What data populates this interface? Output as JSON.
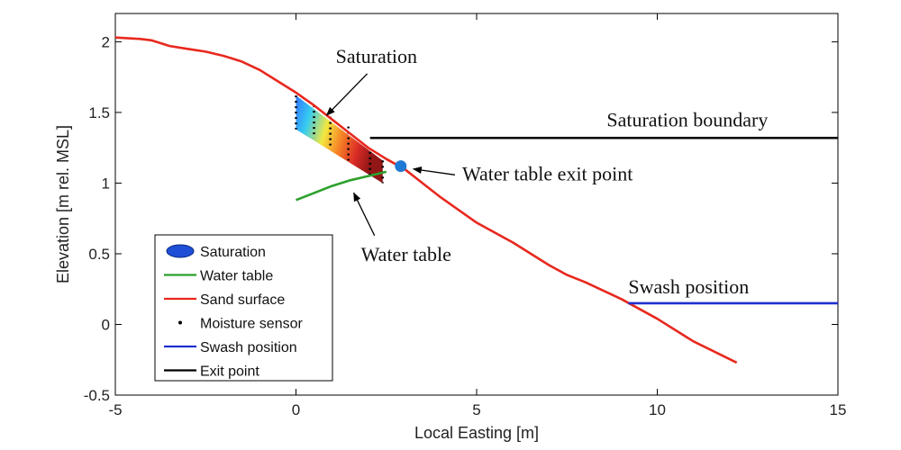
{
  "chart_data": {
    "type": "line",
    "xlabel": "Local Easting [m]",
    "ylabel": "Elevation [m rel. MSL]",
    "xlim": [
      -5,
      15
    ],
    "ylim": [
      -0.5,
      2.2
    ],
    "xticks": [
      "-5",
      "0",
      "5",
      "10",
      "15"
    ],
    "yticks": [
      "-0.5",
      "0",
      "0.5",
      "1",
      "1.5",
      "2"
    ],
    "grid": false,
    "legend_position": "bottom-left",
    "legend": [
      {
        "label": "Saturation",
        "marker": "ellipse",
        "color": "#1f4fd6"
      },
      {
        "label": "Water table",
        "marker": "line",
        "color": "#2ca02c"
      },
      {
        "label": "Sand surface",
        "marker": "line",
        "color": "#e8281e"
      },
      {
        "label": "Moisture sensor",
        "marker": "dot",
        "color": "#000000"
      },
      {
        "label": "Swash position",
        "marker": "line",
        "color": "#1f2fd0"
      },
      {
        "label": "Exit point",
        "marker": "line",
        "color": "#000000"
      }
    ],
    "series": [
      {
        "name": "Sand surface",
        "color": "#e8281e",
        "x": [
          -5,
          -4.3,
          -4,
          -3.5,
          -3,
          -2.5,
          -2,
          -1.5,
          -1,
          -0.5,
          0,
          0.5,
          1,
          1.5,
          2,
          2.5,
          3,
          3.5,
          4,
          5,
          6,
          7,
          7.5,
          8,
          9,
          10,
          11,
          12.2
        ],
        "y": [
          2.03,
          2.02,
          2.01,
          1.97,
          1.95,
          1.93,
          1.9,
          1.86,
          1.8,
          1.72,
          1.64,
          1.55,
          1.45,
          1.35,
          1.25,
          1.17,
          1.1,
          1.0,
          0.9,
          0.72,
          0.58,
          0.42,
          0.35,
          0.3,
          0.18,
          0.04,
          -0.12,
          -0.27
        ]
      },
      {
        "name": "Water table",
        "color": "#2ca02c",
        "x": [
          0,
          0.5,
          1,
          1.5,
          2,
          2.5
        ],
        "y": [
          0.88,
          0.93,
          0.98,
          1.02,
          1.05,
          1.08
        ]
      },
      {
        "name": "Swash position",
        "color": "#1f2fd0",
        "x": [
          9.2,
          15
        ],
        "y": [
          0.15,
          0.15
        ]
      },
      {
        "name": "Exit point",
        "color": "#000000",
        "x": [
          2.05,
          15
        ],
        "y": [
          1.32,
          1.32
        ]
      }
    ],
    "moisture_sensor_columns": [
      {
        "x": 0.0,
        "y_top": 1.62,
        "y_bottom": 1.38
      },
      {
        "x": 0.5,
        "y_top": 1.55,
        "y_bottom": 1.32
      },
      {
        "x": 0.95,
        "y_top": 1.47,
        "y_bottom": 1.25
      },
      {
        "x": 1.45,
        "y_top": 1.4,
        "y_bottom": 1.16
      },
      {
        "x": 2.05,
        "y_top": 1.22,
        "y_bottom": 1.06
      },
      {
        "x": 2.4,
        "y_top": 1.16,
        "y_bottom": 1.0
      }
    ],
    "exit_point": {
      "x": 2.9,
      "y": 1.12
    },
    "annotations": [
      {
        "text": "Saturation",
        "x": 1.1,
        "y": 1.85,
        "arrow_to": [
          0.85,
          1.48
        ]
      },
      {
        "text": "Saturation boundary",
        "x": 8.6,
        "y": 1.4
      },
      {
        "text": "Water table exit point",
        "x": 4.6,
        "y": 1.02,
        "arrow_to": [
          3.25,
          1.1
        ]
      },
      {
        "text": "Water table",
        "x": 1.8,
        "y": 0.45,
        "arrow_to": [
          1.6,
          0.93
        ]
      },
      {
        "text": "Swash position",
        "x": 9.2,
        "y": 0.22
      }
    ]
  }
}
